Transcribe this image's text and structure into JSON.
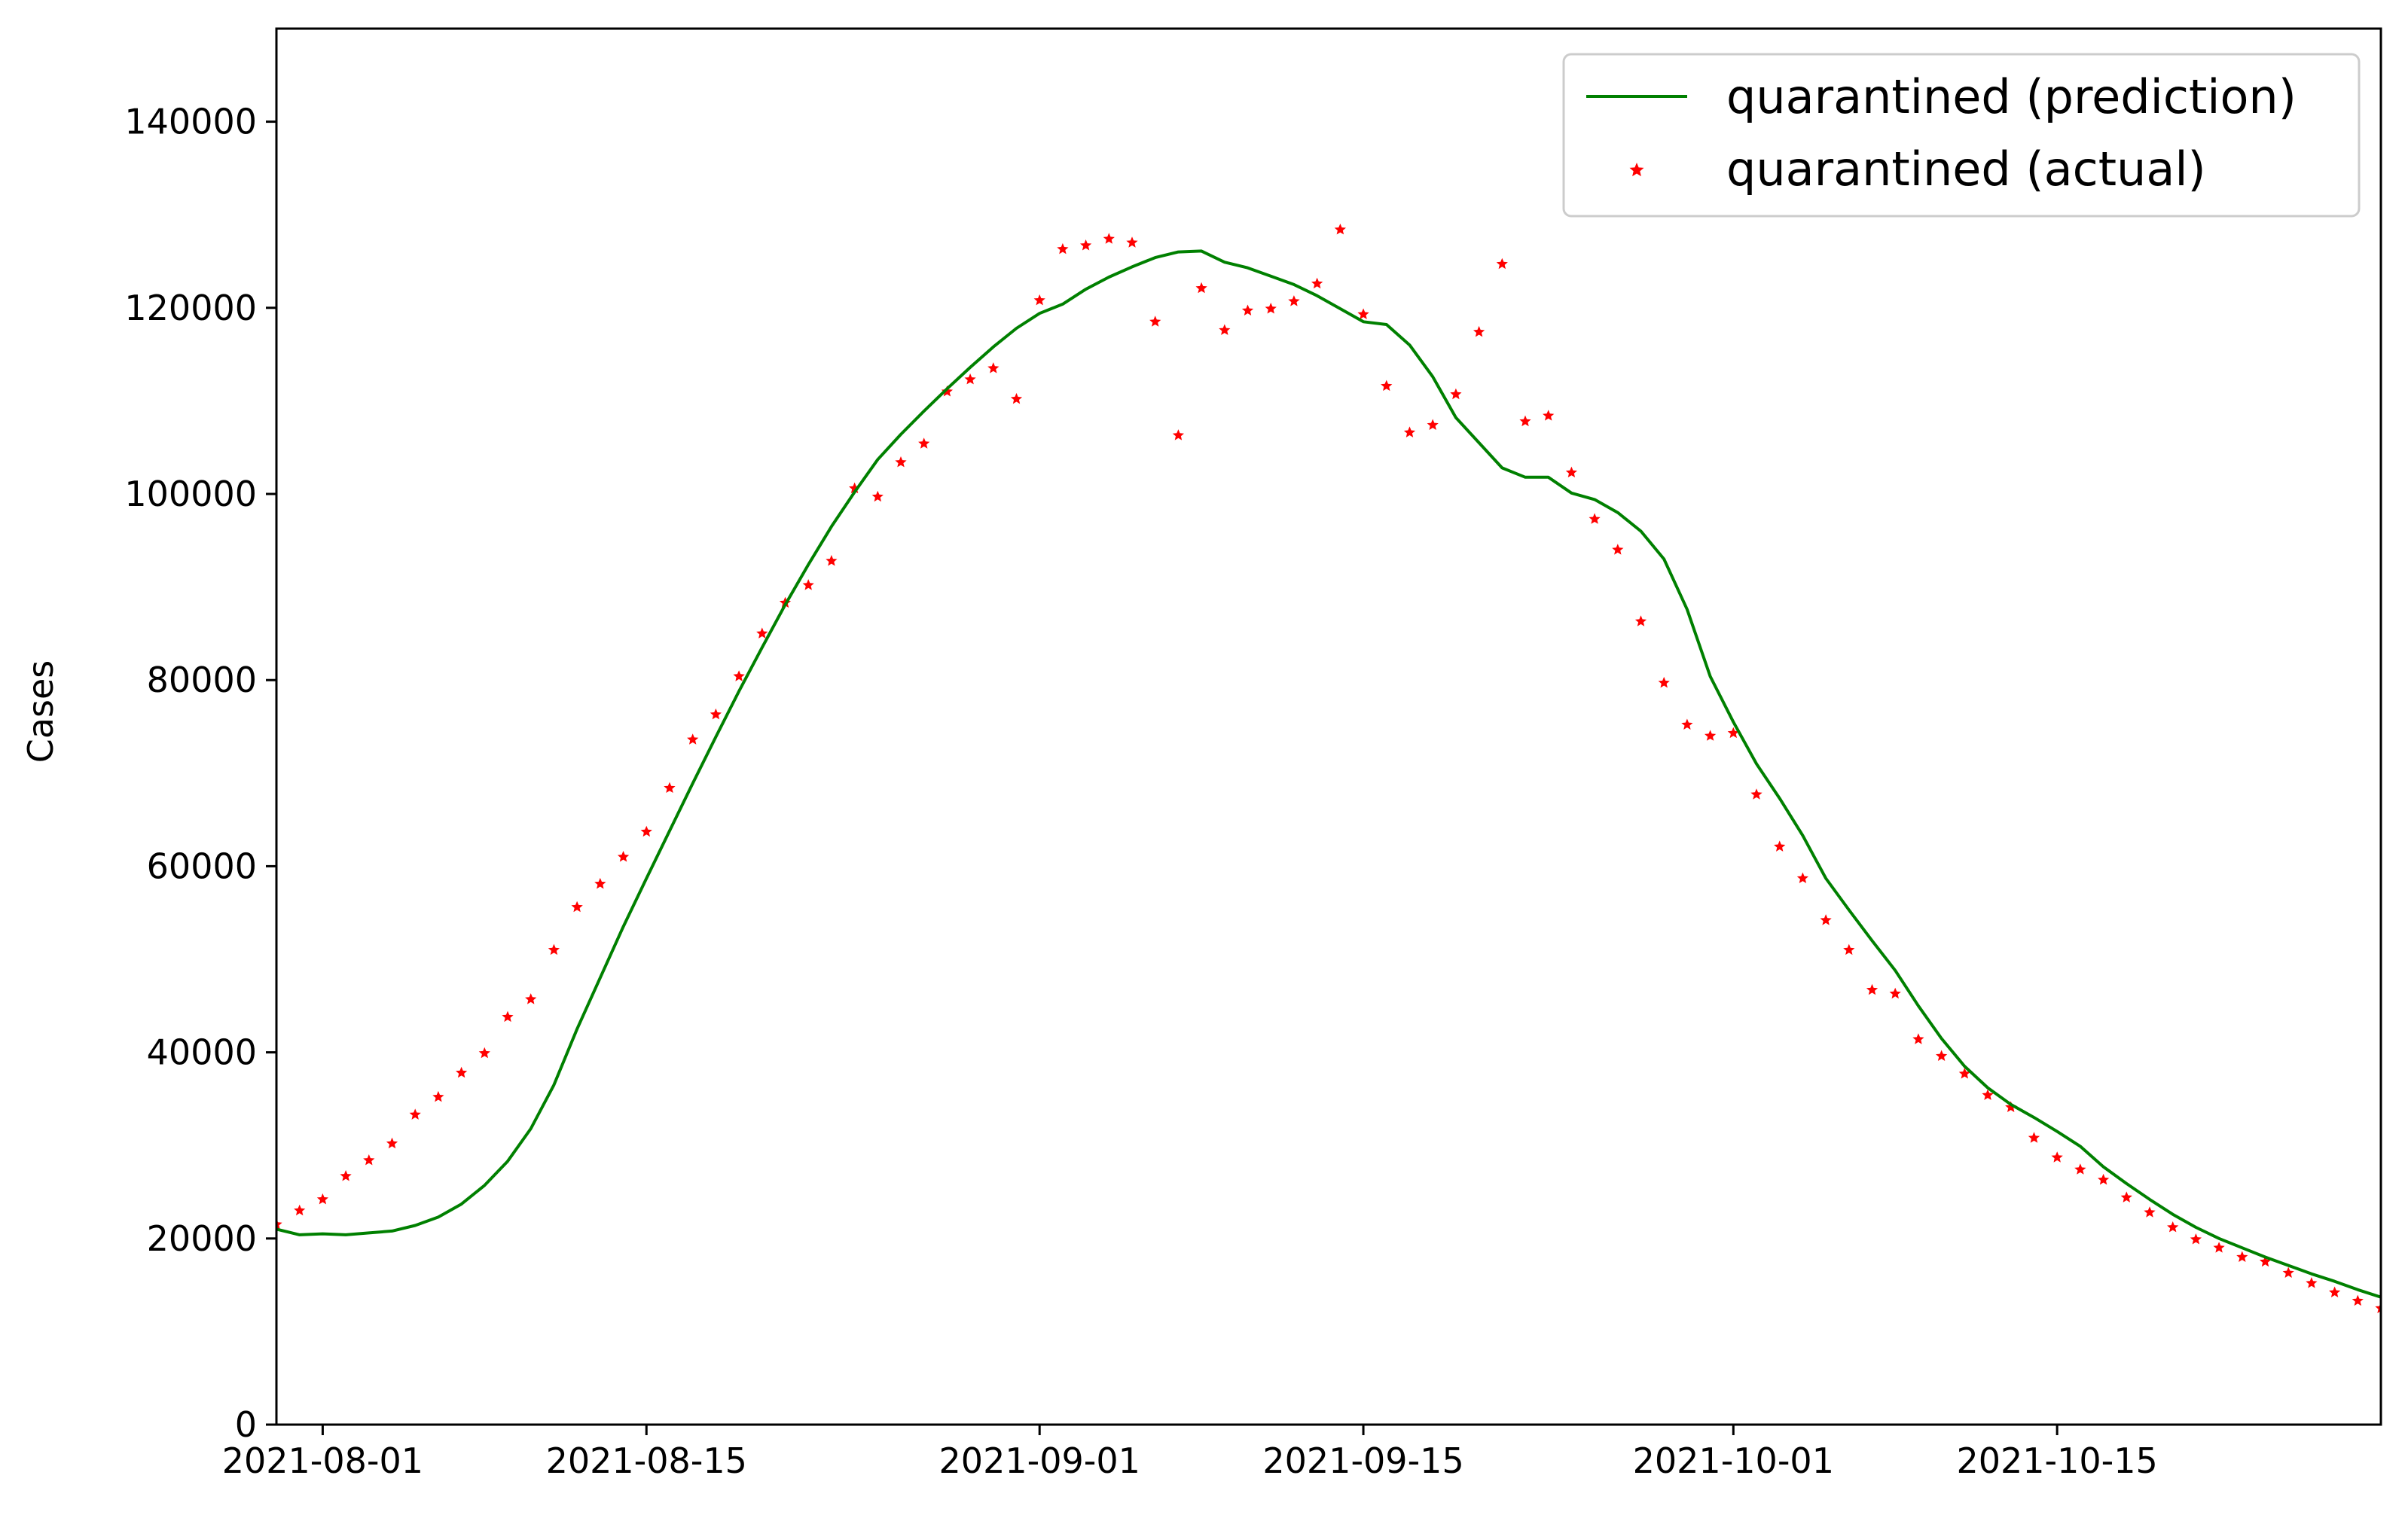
{
  "chart_data": {
    "type": "line",
    "title": "",
    "xlabel": "",
    "ylabel": "Cases",
    "x_start": "2021-07-30",
    "xlim": [
      "2021-07-30",
      "2021-10-29"
    ],
    "ylim": [
      0,
      150000
    ],
    "x_ticks": [
      "2021-08-01",
      "2021-08-15",
      "2021-09-01",
      "2021-09-15",
      "2021-10-01",
      "2021-10-15"
    ],
    "y_ticks": [
      0,
      20000,
      40000,
      60000,
      80000,
      100000,
      120000,
      140000
    ],
    "grid": false,
    "legend_position": "top-right",
    "series": [
      {
        "name": "quarantined (prediction)",
        "style": "line",
        "color": "#008000",
        "values": [
          21000,
          20400,
          20500,
          20400,
          20600,
          20800,
          21400,
          22300,
          23700,
          25700,
          28300,
          31800,
          36500,
          42500,
          48000,
          53500,
          58700,
          63800,
          68900,
          73900,
          78800,
          83500,
          88100,
          92400,
          96500,
          100200,
          103700,
          106400,
          108900,
          111300,
          113600,
          115800,
          117800,
          119400,
          120400,
          122000,
          123300,
          124400,
          125400,
          126000,
          126100,
          124900,
          124300,
          123400,
          122500,
          121300,
          119900,
          118500,
          118200,
          116000,
          112600,
          108200,
          105500,
          102800,
          101800,
          101800,
          100100,
          99400,
          98000,
          96000,
          93000,
          87600,
          80400,
          75500,
          71000,
          67300,
          63300,
          58700,
          55300,
          52000,
          48800,
          45000,
          41500,
          38500,
          36200,
          34400,
          33000,
          31500,
          29900,
          27700,
          25900,
          24200,
          22600,
          21200,
          20000,
          19000,
          18000,
          17100,
          16200,
          15400,
          14500,
          13700,
          13000
        ]
      },
      {
        "name": "quarantined (actual)",
        "style": "star-marker",
        "color": "#ff0000",
        "values": [
          21500,
          23000,
          24200,
          26700,
          28400,
          30200,
          33300,
          35200,
          37800,
          39900,
          43800,
          45700,
          51000,
          55600,
          58100,
          61000,
          63700,
          68400,
          73600,
          76300,
          80400,
          85000,
          88300,
          90200,
          92800,
          100600,
          99700,
          103400,
          105400,
          111000,
          112300,
          113500,
          110200,
          120800,
          126300,
          126700,
          127400,
          127000,
          118500,
          106300,
          122100,
          117600,
          119700,
          119900,
          120700,
          122600,
          128400,
          119300,
          111600,
          106600,
          107400,
          110700,
          117400,
          124700,
          107800,
          108400,
          102300,
          97300,
          94000,
          86300,
          79700,
          75200,
          74000,
          74300,
          67700,
          62100,
          58700,
          54200,
          51000,
          46700,
          46300,
          41400,
          39600,
          37700,
          35400,
          34100,
          30800,
          28700,
          27400,
          26300,
          24400,
          22800,
          21200,
          19900,
          19000,
          18000,
          17500,
          16300,
          15200,
          14200,
          13300,
          12500
        ]
      }
    ]
  }
}
